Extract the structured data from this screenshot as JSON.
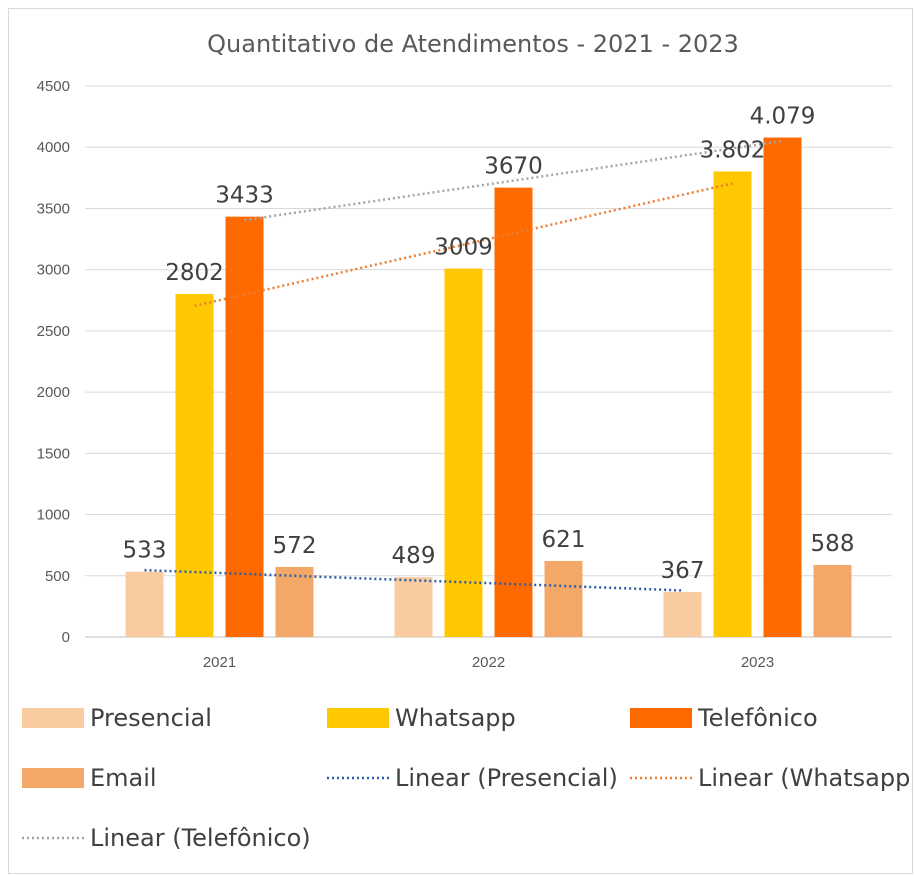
{
  "chart_data": {
    "type": "bar",
    "title": "Quantitativo de Atendimentos - 2021 - 2023",
    "xlabel": "",
    "ylabel": "",
    "ylim": [
      0,
      4500
    ],
    "yticks": [
      "0",
      "500",
      "1000",
      "1500",
      "2000",
      "2500",
      "3000",
      "3500",
      "4000",
      "4500"
    ],
    "grid": true,
    "legend_position": "bottom",
    "categories": [
      "2021",
      "2022",
      "2023"
    ],
    "series": [
      {
        "name": "Presencial",
        "color": "#F8CBA0",
        "values": [
          533,
          489,
          367
        ],
        "labels": [
          "533",
          "489",
          "367"
        ]
      },
      {
        "name": "Whatsapp",
        "color": "#FFC800",
        "values": [
          2802,
          3009,
          3802
        ],
        "labels": [
          "2802",
          "3009",
          "3.802"
        ]
      },
      {
        "name": "Telefônico",
        "color": "#FF6A00",
        "values": [
          3433,
          3670,
          4079
        ],
        "labels": [
          "3433",
          "3670",
          "4.079"
        ]
      },
      {
        "name": "Email",
        "color": "#F4A868",
        "values": [
          572,
          621,
          588
        ],
        "labels": [
          "572",
          "621",
          "588"
        ]
      }
    ],
    "trendlines": [
      {
        "name": "Linear (Presencial)",
        "series": "Presencial",
        "color": "#2E5DA8"
      },
      {
        "name": "Linear (Whatsapp",
        "series": "Whatsapp",
        "color": "#ED7D31"
      },
      {
        "name": "Linear (Telefônico)",
        "series": "Telefônico",
        "color": "#A5A5A5"
      }
    ]
  }
}
